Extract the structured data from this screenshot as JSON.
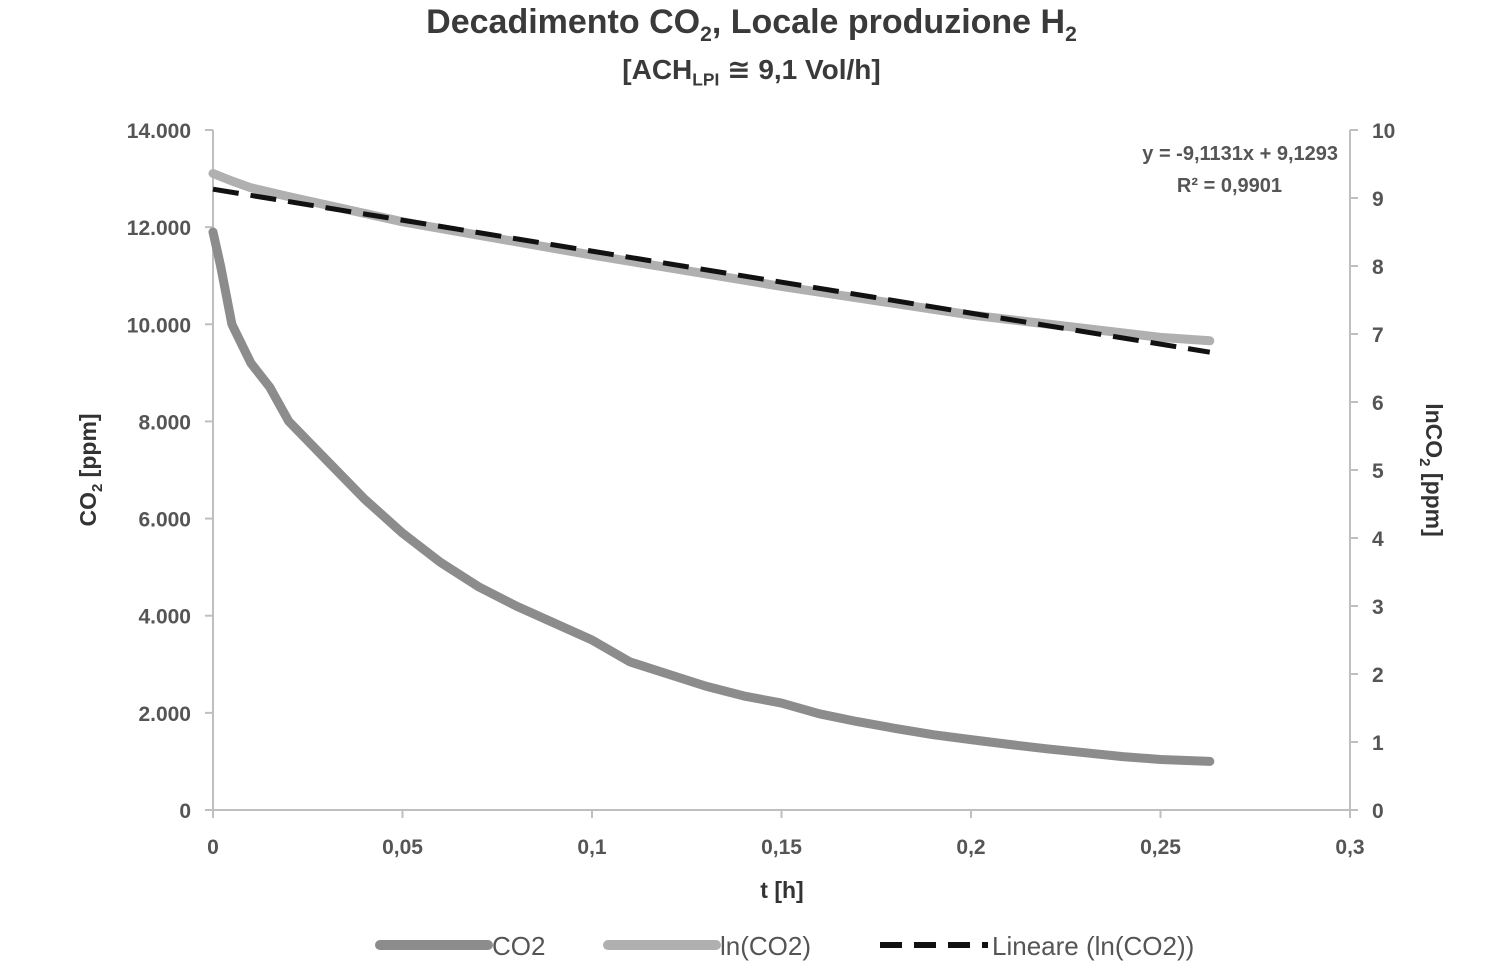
{
  "chart_data": {
    "type": "line",
    "title_parts": {
      "a": "Decadimento CO",
      "b": "2",
      "c": ", Locale produzione H",
      "d": "2"
    },
    "subtitle_parts": {
      "a": "[ACH",
      "b": "LPI",
      "c": " ≅ 9,1 Vol/h]"
    },
    "xlabel": "t [h]",
    "ylabel_parts": {
      "a": "CO",
      "b": "2",
      "c": " [ppm]"
    },
    "y2label_parts": {
      "a": "lnCO",
      "b": "2",
      "c": " [ppm]"
    },
    "xlim": [
      0,
      0.3
    ],
    "ylim": [
      0,
      14000
    ],
    "y2lim": [
      0,
      10
    ],
    "x_ticks": [
      "0",
      "0,05",
      "0,1",
      "0,15",
      "0,2",
      "0,25",
      "0,3"
    ],
    "y_ticks": [
      "0",
      "2.000",
      "4.000",
      "6.000",
      "8.000",
      "10.000",
      "12.000",
      "14.000"
    ],
    "y2_ticks": [
      "0",
      "1",
      "2",
      "3",
      "4",
      "5",
      "6",
      "7",
      "8",
      "9",
      "10"
    ],
    "grid": false,
    "legend_position": "bottom",
    "annotation": {
      "equation": "y = -9,1131x + 9,1293",
      "r2": "R² = 0,9901"
    },
    "series": [
      {
        "name": "CO2",
        "axis": "left",
        "color": "#8c8c8c",
        "style": "solid",
        "x": [
          0,
          0.002,
          0.005,
          0.01,
          0.015,
          0.02,
          0.025,
          0.03,
          0.04,
          0.05,
          0.06,
          0.07,
          0.08,
          0.09,
          0.1,
          0.11,
          0.12,
          0.13,
          0.14,
          0.15,
          0.16,
          0.17,
          0.18,
          0.19,
          0.2,
          0.21,
          0.22,
          0.23,
          0.24,
          0.25,
          0.263
        ],
        "y": [
          11900,
          11200,
          10000,
          9200,
          8700,
          8000,
          7600,
          7200,
          6400,
          5700,
          5100,
          4600,
          4200,
          3850,
          3500,
          3050,
          2800,
          2550,
          2350,
          2200,
          1980,
          1820,
          1680,
          1550,
          1450,
          1350,
          1260,
          1180,
          1100,
          1040,
          1000
        ]
      },
      {
        "name": "ln(CO2)",
        "axis": "right",
        "color": "#b0b0b0",
        "style": "solid",
        "x": [
          0,
          0.005,
          0.01,
          0.02,
          0.05,
          0.1,
          0.15,
          0.2,
          0.25,
          0.263
        ],
        "y": [
          9.36,
          9.25,
          9.15,
          9.02,
          8.65,
          8.16,
          7.7,
          7.28,
          6.95,
          6.9
        ]
      },
      {
        "name": "Lineare (ln(CO2))",
        "axis": "right",
        "color": "#111111",
        "style": "dashed",
        "x": [
          0,
          0.263
        ],
        "y": [
          9.1293,
          6.7329
        ]
      }
    ]
  }
}
